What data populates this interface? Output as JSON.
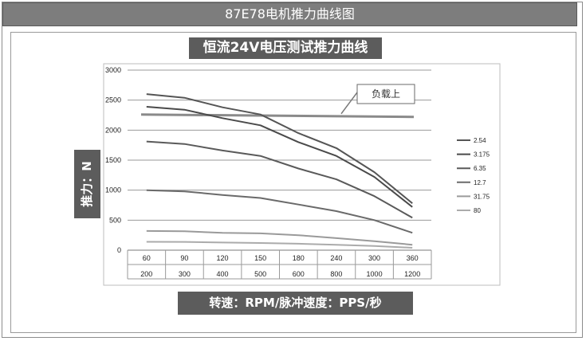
{
  "header": {
    "title": "87E78电机推力曲线图"
  },
  "chart_data": {
    "type": "line",
    "title": "恒流24V电压测试推力曲线",
    "ylabel": "推力：N",
    "xlabel": "转速：RPM/脉冲速度：PPS/秒",
    "categories": [
      "60",
      "90",
      "120",
      "150",
      "180",
      "240",
      "300",
      "360"
    ],
    "categories_secondary": [
      "200",
      "300",
      "400",
      "500",
      "600",
      "800",
      "1000",
      "1200"
    ],
    "ylim": [
      0,
      3000
    ],
    "yticks": [
      "0",
      "500",
      "1000",
      "1500",
      "2000",
      "2500",
      "3000"
    ],
    "grid": true,
    "legend_position": "right",
    "series": [
      {
        "name": "2.54",
        "color": "#555555",
        "values": [
          2600,
          2540,
          2380,
          2260,
          1950,
          1700,
          1300,
          780
        ]
      },
      {
        "name": "3.175",
        "color": "#4a4a4a",
        "values": [
          2390,
          2340,
          2200,
          2080,
          1800,
          1570,
          1220,
          720
        ]
      },
      {
        "name": "6.35",
        "color": "#5a5a5a",
        "values": [
          1810,
          1770,
          1660,
          1570,
          1360,
          1180,
          900,
          540
        ]
      },
      {
        "name": "12.7",
        "color": "#6a6a6a",
        "values": [
          1000,
          980,
          920,
          870,
          760,
          650,
          500,
          290
        ]
      },
      {
        "name": "31.75",
        "color": "#9a9a9a",
        "values": [
          320,
          315,
          290,
          280,
          250,
          200,
          150,
          90
        ]
      },
      {
        "name": "80",
        "color": "#ababab",
        "values": [
          140,
          138,
          128,
          120,
          108,
          90,
          70,
          40
        ]
      }
    ],
    "reference_line": {
      "label": "负载上",
      "value": 2220
    }
  }
}
